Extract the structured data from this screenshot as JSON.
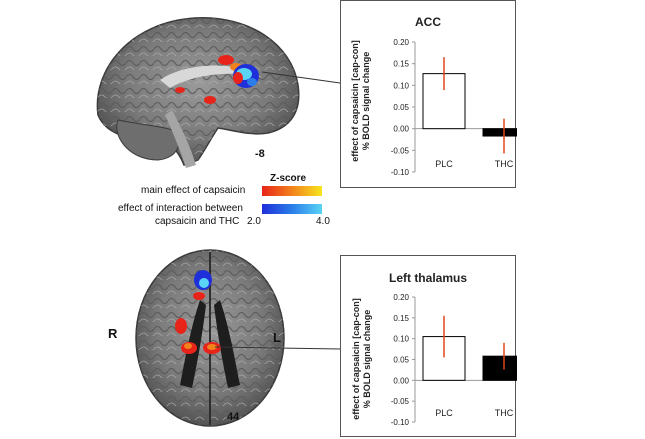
{
  "slices": {
    "sagittal_label": "-8",
    "axial_label": "44",
    "right_label": "R",
    "left_label": "L"
  },
  "legend": {
    "zscore_title": "Z-score",
    "main_effect": "main effect of capsaicin",
    "interaction_line1": "effect of interaction between",
    "interaction_line2": "capsaicin and THC",
    "min": "2.0",
    "max": "4.0",
    "colors": {
      "main_low": "#e8241a",
      "main_high": "#f7e51e",
      "inter_low": "#1f2fd9",
      "inter_high": "#59d4f5",
      "bar_plc": "#ffffff",
      "bar_thc": "#000000",
      "error": "#e0441c"
    }
  },
  "chart_data": [
    {
      "type": "bar",
      "title": "ACC",
      "ylabel_line1": "effect of capsaicin [cap-con]",
      "ylabel_line2": "% BOLD signal change",
      "categories": [
        "PLC",
        "THC"
      ],
      "values": [
        0.127,
        -0.017
      ],
      "errors": [
        0.038,
        0.04
      ],
      "ylim": [
        -0.1,
        0.2
      ],
      "yticks": [
        "0.20",
        "0.15",
        "0.10",
        "0.05",
        "0.00",
        "-0.05",
        "-0.10"
      ]
    },
    {
      "type": "bar",
      "title": "Left thalamus",
      "ylabel_line1": "effect of capsaicin [cap-con]",
      "ylabel_line2": "% BOLD signal change",
      "categories": [
        "PLC",
        "THC"
      ],
      "values": [
        0.105,
        0.058
      ],
      "errors": [
        0.05,
        0.032
      ],
      "ylim": [
        -0.1,
        0.2
      ],
      "yticks": [
        "0.20",
        "0.15",
        "0.10",
        "0.05",
        "0.00",
        "-0.05",
        "-0.10"
      ]
    }
  ]
}
